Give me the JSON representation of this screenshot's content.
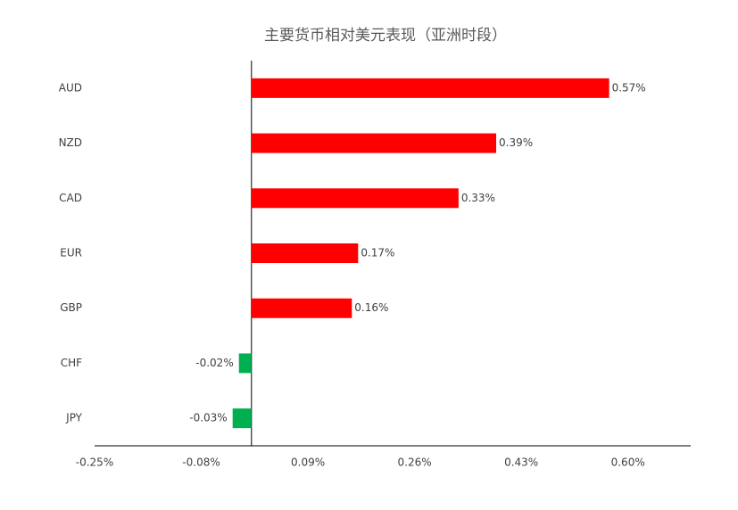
{
  "chart_data": {
    "type": "bar",
    "orientation": "horizontal",
    "title": "主要货币相对美元表现（亚洲时段）",
    "categories": [
      "AUD",
      "NZD",
      "CAD",
      "EUR",
      "GBP",
      "CHF",
      "JPY"
    ],
    "values": [
      0.57,
      0.39,
      0.33,
      0.17,
      0.16,
      -0.02,
      -0.03
    ],
    "value_labels": [
      "0.57%",
      "0.39%",
      "0.33%",
      "0.17%",
      "0.16%",
      "-0.02%",
      "-0.03%"
    ],
    "colors": [
      "#ff0000",
      "#ff0000",
      "#ff0000",
      "#ff0000",
      "#ff0000",
      "#00b050",
      "#00b050"
    ],
    "xlim": [
      -0.25,
      0.7
    ],
    "xticks": [
      {
        "value": -0.25,
        "label": "-0.25%"
      },
      {
        "value": -0.08,
        "label": "-0.08%"
      },
      {
        "value": 0.09,
        "label": "0.09%"
      },
      {
        "value": 0.26,
        "label": "0.26%"
      },
      {
        "value": 0.43,
        "label": "0.43%"
      },
      {
        "value": 0.6,
        "label": "0.60%"
      }
    ],
    "grid": false
  }
}
